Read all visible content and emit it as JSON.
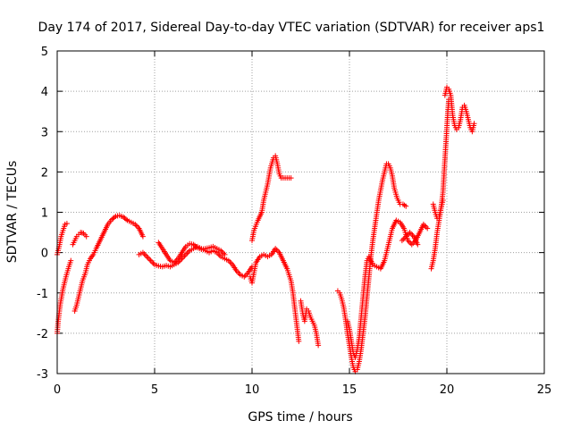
{
  "chart_data": {
    "type": "scatter",
    "title": "Day 174 of 2017, Sidereal Day-to-day VTEC variation (SDTVAR) for receiver aps1",
    "xlabel": "GPS time / hours",
    "ylabel": "SDTVAR / TECUs",
    "xlim": [
      0,
      25
    ],
    "ylim": [
      -3,
      5
    ],
    "xticks": [
      "0",
      "5",
      "10",
      "15",
      "20",
      "25"
    ],
    "yticks": [
      "-3",
      "-2",
      "-1",
      "0",
      "1",
      "2",
      "3",
      "4",
      "5"
    ],
    "grid": true,
    "marker": "plus",
    "colors": {
      "series": "#ff0000",
      "grid": "#a0a0a0",
      "frame": "#000000"
    },
    "series": [
      {
        "segments": [
          [
            [
              0.0,
              -2.0
            ],
            [
              0.05,
              -1.7
            ],
            [
              0.15,
              -1.3
            ],
            [
              0.3,
              -0.9
            ],
            [
              0.45,
              -0.6
            ],
            [
              0.6,
              -0.35
            ],
            [
              0.7,
              -0.2
            ]
          ],
          [
            [
              0.0,
              -0.05
            ],
            [
              0.1,
              0.15
            ],
            [
              0.2,
              0.4
            ],
            [
              0.3,
              0.55
            ],
            [
              0.4,
              0.7
            ],
            [
              0.5,
              0.72
            ]
          ],
          [
            [
              0.9,
              -1.45
            ],
            [
              1.0,
              -1.3
            ],
            [
              1.1,
              -1.1
            ],
            [
              1.2,
              -0.9
            ],
            [
              1.3,
              -0.7
            ],
            [
              1.45,
              -0.5
            ],
            [
              1.55,
              -0.3
            ],
            [
              1.7,
              -0.15
            ],
            [
              1.85,
              -0.05
            ],
            [
              2.0,
              0.1
            ],
            [
              2.2,
              0.3
            ],
            [
              2.4,
              0.5
            ],
            [
              2.6,
              0.7
            ],
            [
              2.8,
              0.82
            ],
            [
              3.0,
              0.9
            ],
            [
              3.2,
              0.92
            ],
            [
              3.4,
              0.88
            ],
            [
              3.6,
              0.8
            ],
            [
              3.8,
              0.75
            ],
            [
              4.0,
              0.7
            ],
            [
              4.2,
              0.6
            ],
            [
              4.4,
              0.4
            ]
          ],
          [
            [
              0.8,
              0.2
            ],
            [
              0.9,
              0.3
            ],
            [
              1.0,
              0.4
            ],
            [
              1.1,
              0.45
            ],
            [
              1.2,
              0.5
            ],
            [
              1.35,
              0.48
            ],
            [
              1.5,
              0.4
            ]
          ],
          [
            [
              4.2,
              -0.05
            ],
            [
              4.4,
              0.0
            ],
            [
              4.6,
              -0.1
            ],
            [
              4.8,
              -0.2
            ],
            [
              5.0,
              -0.3
            ],
            [
              5.2,
              -0.33
            ],
            [
              5.4,
              -0.35
            ],
            [
              5.6,
              -0.32
            ],
            [
              5.8,
              -0.35
            ],
            [
              6.0,
              -0.3
            ],
            [
              6.2,
              -0.25
            ],
            [
              6.4,
              -0.15
            ],
            [
              6.6,
              -0.05
            ],
            [
              6.8,
              0.05
            ],
            [
              7.0,
              0.1
            ],
            [
              7.2,
              0.15
            ],
            [
              7.4,
              0.1
            ],
            [
              7.6,
              0.05
            ],
            [
              7.8,
              0.0
            ],
            [
              8.0,
              0.05
            ],
            [
              8.2,
              0.0
            ],
            [
              8.4,
              -0.1
            ],
            [
              8.6,
              -0.15
            ],
            [
              8.8,
              -0.2
            ],
            [
              9.0,
              -0.3
            ],
            [
              9.2,
              -0.45
            ],
            [
              9.4,
              -0.55
            ],
            [
              9.6,
              -0.6
            ],
            [
              9.8,
              -0.5
            ],
            [
              10.0,
              -0.35
            ]
          ],
          [
            [
              5.2,
              0.25
            ],
            [
              5.4,
              0.1
            ],
            [
              5.6,
              -0.05
            ],
            [
              5.8,
              -0.2
            ],
            [
              6.0,
              -0.25
            ],
            [
              6.2,
              -0.15
            ],
            [
              6.4,
              0.0
            ],
            [
              6.6,
              0.15
            ],
            [
              6.8,
              0.22
            ],
            [
              7.0,
              0.2
            ],
            [
              7.2,
              0.12
            ],
            [
              7.4,
              0.08
            ],
            [
              7.6,
              0.1
            ],
            [
              7.8,
              0.12
            ],
            [
              8.0,
              0.15
            ],
            [
              8.2,
              0.1
            ],
            [
              8.4,
              0.05
            ],
            [
              8.6,
              -0.05
            ]
          ],
          [
            [
              9.9,
              -0.6
            ],
            [
              10.0,
              -0.75
            ],
            [
              10.1,
              -0.5
            ],
            [
              10.2,
              -0.25
            ],
            [
              10.4,
              -0.1
            ],
            [
              10.6,
              -0.05
            ],
            [
              10.8,
              -0.1
            ],
            [
              11.0,
              -0.05
            ],
            [
              11.2,
              0.1
            ],
            [
              11.4,
              0.0
            ],
            [
              11.6,
              -0.2
            ],
            [
              11.8,
              -0.4
            ],
            [
              12.0,
              -0.7
            ],
            [
              12.1,
              -1.0
            ],
            [
              12.2,
              -1.4
            ],
            [
              12.3,
              -1.8
            ],
            [
              12.4,
              -2.2
            ]
          ],
          [
            [
              10.0,
              0.3
            ],
            [
              10.1,
              0.55
            ],
            [
              10.3,
              0.8
            ],
            [
              10.5,
              1.0
            ],
            [
              10.6,
              1.3
            ],
            [
              10.8,
              1.7
            ],
            [
              10.95,
              2.1
            ],
            [
              11.1,
              2.35
            ],
            [
              11.2,
              2.4
            ],
            [
              11.3,
              2.2
            ],
            [
              11.4,
              1.95
            ],
            [
              11.5,
              1.85
            ],
            [
              11.7,
              1.85
            ],
            [
              11.9,
              1.85
            ],
            [
              12.0,
              1.85
            ]
          ],
          [
            [
              12.5,
              -1.2
            ],
            [
              12.6,
              -1.5
            ],
            [
              12.7,
              -1.7
            ],
            [
              12.8,
              -1.4
            ],
            [
              12.9,
              -1.45
            ],
            [
              13.0,
              -1.6
            ],
            [
              13.1,
              -1.7
            ],
            [
              13.2,
              -1.8
            ],
            [
              13.3,
              -2.0
            ],
            [
              13.4,
              -2.3
            ]
          ],
          [
            [
              14.4,
              -0.95
            ],
            [
              14.5,
              -1.0
            ],
            [
              14.6,
              -1.15
            ],
            [
              14.7,
              -1.35
            ],
            [
              14.8,
              -1.65
            ],
            [
              14.9,
              -2.0
            ],
            [
              15.0,
              -2.3
            ],
            [
              15.1,
              -2.6
            ],
            [
              15.2,
              -2.85
            ],
            [
              15.3,
              -2.95
            ],
            [
              15.4,
              -2.9
            ],
            [
              15.5,
              -2.7
            ],
            [
              15.6,
              -2.4
            ],
            [
              15.7,
              -2.0
            ],
            [
              15.8,
              -1.6
            ],
            [
              15.9,
              -1.1
            ],
            [
              16.0,
              -0.6
            ],
            [
              16.1,
              -0.1
            ],
            [
              16.2,
              0.3
            ],
            [
              16.35,
              0.8
            ],
            [
              16.5,
              1.3
            ],
            [
              16.7,
              1.8
            ],
            [
              16.9,
              2.2
            ],
            [
              17.0,
              2.2
            ],
            [
              17.1,
              2.1
            ],
            [
              17.2,
              1.9
            ],
            [
              17.3,
              1.6
            ],
            [
              17.45,
              1.35
            ],
            [
              17.6,
              1.2
            ],
            [
              17.75,
              1.2
            ],
            [
              17.9,
              1.15
            ]
          ],
          [
            [
              14.9,
              -1.7
            ],
            [
              15.0,
              -1.9
            ],
            [
              15.1,
              -2.2
            ],
            [
              15.2,
              -2.5
            ],
            [
              15.3,
              -2.6
            ],
            [
              15.4,
              -2.4
            ],
            [
              15.5,
              -2.1
            ],
            [
              15.6,
              -1.6
            ],
            [
              15.7,
              -1.1
            ],
            [
              15.8,
              -0.6
            ],
            [
              15.9,
              -0.2
            ],
            [
              16.0,
              -0.1
            ],
            [
              16.2,
              -0.3
            ],
            [
              16.4,
              -0.35
            ],
            [
              16.6,
              -0.4
            ],
            [
              16.8,
              -0.2
            ],
            [
              17.0,
              0.2
            ],
            [
              17.2,
              0.6
            ],
            [
              17.4,
              0.8
            ],
            [
              17.6,
              0.75
            ],
            [
              17.8,
              0.6
            ],
            [
              17.9,
              0.45
            ],
            [
              18.0,
              0.3
            ],
            [
              18.2,
              0.2
            ],
            [
              18.4,
              0.3
            ],
            [
              18.6,
              0.5
            ],
            [
              18.8,
              0.7
            ],
            [
              19.0,
              0.6
            ]
          ],
          [
            [
              17.7,
              0.3
            ],
            [
              17.9,
              0.4
            ],
            [
              18.1,
              0.5
            ],
            [
              18.3,
              0.4
            ],
            [
              18.5,
              0.2
            ]
          ],
          [
            [
              19.2,
              -0.4
            ],
            [
              19.3,
              -0.2
            ],
            [
              19.4,
              0.1
            ],
            [
              19.5,
              0.5
            ],
            [
              19.6,
              0.8
            ],
            [
              19.7,
              1.1
            ],
            [
              19.8,
              1.5
            ],
            [
              19.85,
              1.9
            ],
            [
              19.9,
              2.3
            ],
            [
              19.95,
              2.7
            ],
            [
              20.0,
              3.1
            ],
            [
              20.05,
              3.5
            ],
            [
              20.1,
              3.8
            ]
          ],
          [
            [
              19.9,
              3.9
            ],
            [
              20.0,
              4.1
            ],
            [
              20.1,
              4.05
            ],
            [
              20.2,
              3.9
            ],
            [
              20.3,
              3.4
            ],
            [
              20.4,
              3.15
            ],
            [
              20.5,
              3.05
            ],
            [
              20.6,
              3.1
            ],
            [
              20.7,
              3.3
            ],
            [
              20.8,
              3.6
            ],
            [
              20.9,
              3.65
            ],
            [
              21.0,
              3.5
            ],
            [
              21.1,
              3.3
            ],
            [
              21.2,
              3.1
            ],
            [
              21.3,
              3.0
            ],
            [
              21.4,
              3.2
            ]
          ],
          [
            [
              19.3,
              1.2
            ],
            [
              19.4,
              1.0
            ],
            [
              19.5,
              0.85
            ],
            [
              19.6,
              0.9
            ],
            [
              19.7,
              1.1
            ],
            [
              19.8,
              1.3
            ]
          ]
        ]
      }
    ]
  }
}
